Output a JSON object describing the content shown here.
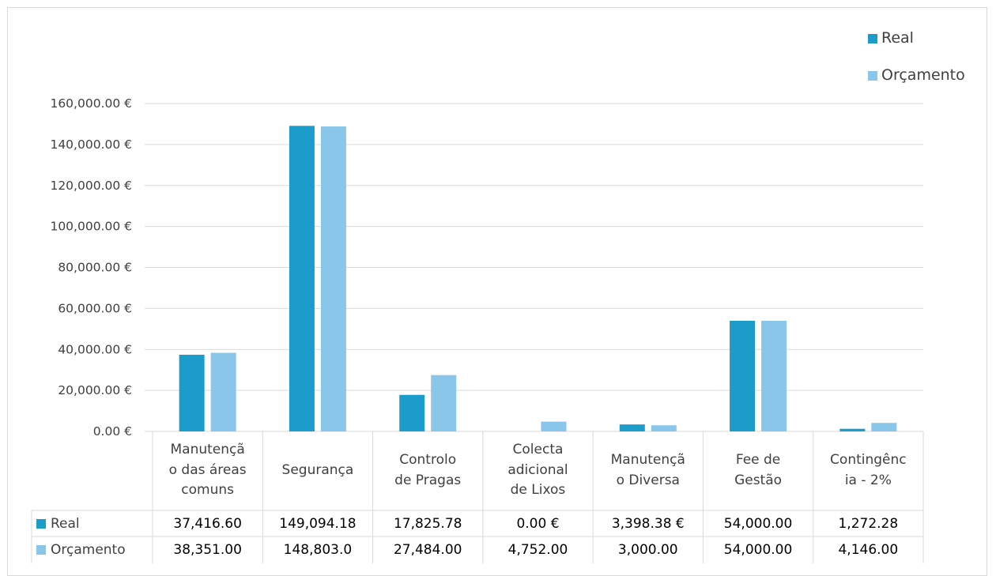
{
  "chart_data": {
    "type": "bar",
    "categories": [
      "Manutenção das áreas comuns",
      "Segurança",
      "Controlo de Pragas",
      "Colecta adicional de Lixos",
      "Manutenção Diversa",
      "Fee de Gestão",
      "Contingência - 2%"
    ],
    "category_lines": [
      [
        "Manutençã",
        "o das áreas",
        "comuns"
      ],
      [
        "Segurança"
      ],
      [
        "Controlo",
        "de Pragas"
      ],
      [
        "Colecta",
        "adicional",
        "de Lixos"
      ],
      [
        "Manutençã",
        "o Diversa"
      ],
      [
        "Fee de",
        "Gestão"
      ],
      [
        "Contingênc",
        "ia - 2%"
      ]
    ],
    "series": [
      {
        "name": "Real",
        "color": "#1b9ccb",
        "values": [
          37416.6,
          149094.18,
          17825.78,
          0.0,
          3398.38,
          54000.0,
          1272.28
        ],
        "table_labels": [
          "37,416.60",
          "149,094.18",
          "17,825.78",
          "0.00 €",
          "3,398.38 €",
          "54,000.00",
          "1,272.28"
        ]
      },
      {
        "name": "Orçamento",
        "color": "#8ac6ea",
        "values": [
          38351.0,
          148803.0,
          27484.0,
          4752.0,
          3000.0,
          54000.0,
          4146.0
        ],
        "table_labels": [
          "38,351.00",
          "148,803.0",
          "27,484.00",
          "4,752.00",
          "3,000.00",
          "54,000.00",
          "4,146.00"
        ]
      }
    ],
    "ylim": [
      0,
      160000
    ],
    "yticks": [
      0,
      20000,
      40000,
      60000,
      80000,
      100000,
      120000,
      140000,
      160000
    ],
    "ytick_labels": [
      "0.00 €",
      "20,000.00 €",
      "40,000.00 €",
      "60,000.00 €",
      "80,000.00 €",
      "100,000.00 €",
      "120,000.00 €",
      "140,000.00 €",
      "160,000.00 €"
    ],
    "legend_position": "top-right",
    "grid": true,
    "data_table": true,
    "grid_color": "#d9d9d9"
  }
}
